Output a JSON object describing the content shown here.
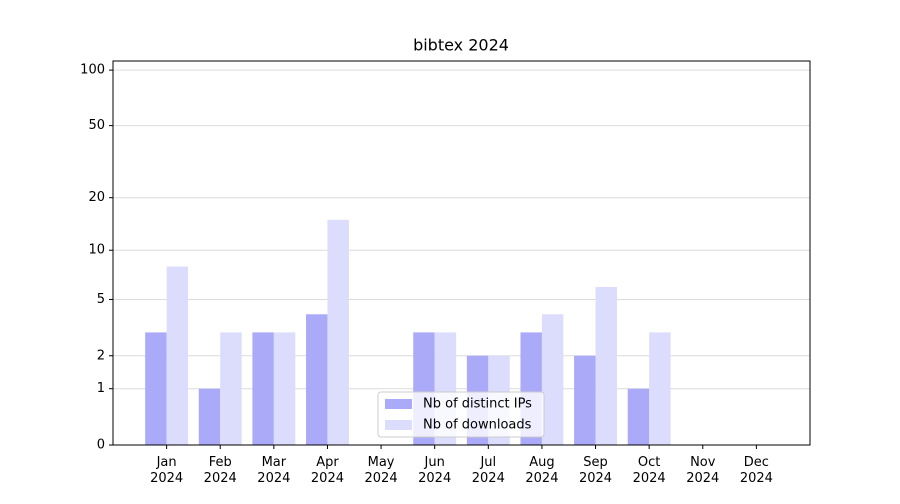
{
  "chart_data": {
    "type": "bar",
    "title": "bibtex 2024",
    "categories": [
      "Jan\n2024",
      "Feb\n2024",
      "Mar\n2024",
      "Apr\n2024",
      "May\n2024",
      "Jun\n2024",
      "Jul\n2024",
      "Aug\n2024",
      "Sep\n2024",
      "Oct\n2024",
      "Nov\n2024",
      "Dec\n2024"
    ],
    "series": [
      {
        "name": "Nb of distinct IPs",
        "color": "#aaaaf8",
        "values": [
          3,
          1,
          3,
          4,
          0,
          3,
          2,
          3,
          2,
          1,
          0,
          0
        ]
      },
      {
        "name": "Nb of downloads",
        "color": "#dcdcfc",
        "values": [
          8,
          3,
          3,
          15,
          0,
          3,
          2,
          4,
          6,
          3,
          0,
          0
        ]
      }
    ],
    "yscale": "symlog",
    "ylim": [
      0,
      112
    ],
    "yticks": [
      0,
      1,
      2,
      5,
      10,
      20,
      50,
      100
    ],
    "grid": true,
    "legend": "lower center"
  }
}
